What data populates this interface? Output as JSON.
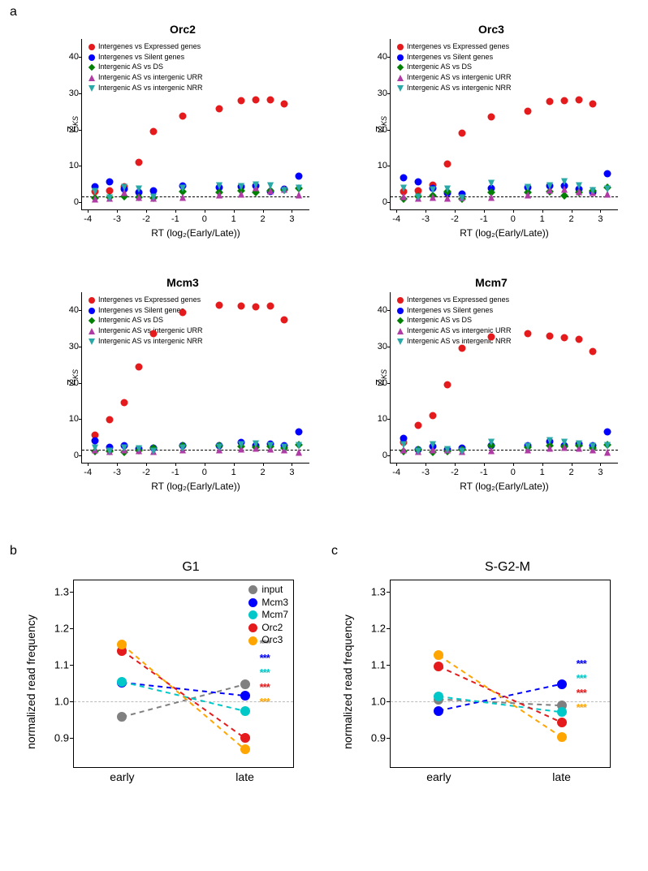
{
  "colors": {
    "red": "#e41a1c",
    "blue": "#0000ff",
    "green": "#008000",
    "magenta": "#b03ba5",
    "teal": "#2aa8a8",
    "grey": "#808080",
    "cyan": "#00c8c8",
    "gold": "#ffa500"
  },
  "panel_labels": {
    "a": "a",
    "b": "b",
    "c": "c"
  },
  "scatter": {
    "xlabel": "RT (log₂(Early/Late))",
    "ylabel": "Z",
    "ylabel_sub": "KS",
    "legend": [
      {
        "label": "Intergenes vs Expressed genes",
        "color": "red",
        "shape": "circle"
      },
      {
        "label": "Intergenes vs Silent genes",
        "color": "blue",
        "shape": "circle"
      },
      {
        "label": "Intergenic AS vs DS",
        "color": "green",
        "shape": "diamond"
      },
      {
        "label": "Intergenic AS vs intergenic URR",
        "color": "magenta",
        "shape": "tri-up"
      },
      {
        "label": "Intergenic AS vs intergenic NRR",
        "color": "teal",
        "shape": "tri-down"
      }
    ],
    "x_points": [
      -3.75,
      -3.25,
      -2.75,
      -2.25,
      -1.75,
      -0.75,
      0.5,
      1.25,
      1.75,
      2.25,
      2.75,
      3.25
    ],
    "xticks": [
      -4,
      -3,
      -2,
      -1,
      0,
      1,
      2,
      3
    ],
    "dashed_y": 1.5,
    "panels": [
      {
        "title": "Orc2",
        "ymax": 45,
        "yticks": [
          0,
          10,
          20,
          30,
          40
        ],
        "series": {
          "red": [
            3.0,
            3.2,
            4.2,
            11.0,
            19.5,
            23.8,
            25.7,
            28.0,
            28.3,
            28.3,
            27.0,
            null
          ],
          "blue": [
            4.2,
            5.6,
            3.5,
            2.7,
            3.2,
            4.4,
            4.0,
            4.2,
            4.5,
            3.0,
            3.6,
            7.1
          ],
          "green": [
            1.2,
            1.4,
            1.6,
            1.4,
            1.2,
            3.0,
            2.8,
            3.2,
            2.7,
            3.2,
            3.4,
            3.8
          ],
          "magenta": [
            1.0,
            1.2,
            2.6,
            1.4,
            1.2,
            1.4,
            2.0,
            2.3,
            4.0,
            3.1,
            3.6,
            2.0
          ],
          "teal": [
            3.0,
            1.2,
            4.0,
            3.5,
            1.4,
            3.8,
            4.5,
            4.2,
            4.8,
            4.5,
            3.2,
            3.8
          ]
        }
      },
      {
        "title": "Orc3",
        "ymax": 45,
        "yticks": [
          0,
          10,
          20,
          30,
          40
        ],
        "series": {
          "red": [
            3.0,
            3.2,
            4.8,
            10.6,
            19.0,
            23.6,
            25.0,
            27.8,
            28.0,
            28.2,
            27.2,
            null
          ],
          "blue": [
            6.7,
            5.6,
            3.8,
            2.4,
            2.2,
            3.8,
            4.0,
            4.5,
            4.6,
            3.5,
            2.8,
            7.8
          ],
          "green": [
            1.0,
            1.5,
            1.8,
            3.0,
            0.8,
            2.8,
            2.6,
            3.0,
            1.8,
            2.6,
            3.2,
            4.0
          ],
          "magenta": [
            1.5,
            1.2,
            1.4,
            1.2,
            1.4,
            1.3,
            2.0,
            3.4,
            3.7,
            3.0,
            2.7,
            2.2
          ],
          "teal": [
            3.8,
            1.4,
            3.3,
            3.5,
            1.2,
            5.2,
            4.0,
            4.4,
            5.5,
            4.6,
            3.2,
            3.6
          ]
        }
      },
      {
        "title": "Mcm3",
        "ymax": 45,
        "yticks": [
          0,
          10,
          20,
          30,
          40
        ],
        "series": {
          "red": [
            5.5,
            9.8,
            14.5,
            24.5,
            33.5,
            39.5,
            41.5,
            41.3,
            41.0,
            41.2,
            37.5,
            null
          ],
          "blue": [
            4.0,
            2.2,
            2.6,
            1.8,
            2.0,
            2.8,
            2.6,
            3.6,
            2.6,
            3.1,
            2.6,
            6.5
          ],
          "green": [
            1.2,
            1.2,
            0.8,
            1.4,
            2.0,
            2.6,
            2.8,
            2.4,
            2.2,
            2.4,
            2.0,
            3.0
          ],
          "magenta": [
            1.5,
            1.2,
            1.5,
            1.3,
            1.2,
            1.6,
            1.6,
            1.8,
            2.0,
            1.8,
            1.6,
            1.0
          ],
          "teal": [
            2.0,
            1.2,
            2.0,
            1.8,
            1.2,
            2.0,
            2.2,
            3.0,
            3.2,
            2.8,
            2.2,
            2.6
          ]
        }
      },
      {
        "title": "Mcm7",
        "ymax": 45,
        "yticks": [
          0,
          10,
          20,
          30,
          40
        ],
        "series": {
          "red": [
            3.6,
            8.2,
            11.0,
            19.5,
            29.5,
            32.6,
            33.5,
            33.0,
            32.5,
            32.0,
            28.7,
            null
          ],
          "blue": [
            4.7,
            1.6,
            2.4,
            1.6,
            2.0,
            2.6,
            2.6,
            3.8,
            2.7,
            3.2,
            2.6,
            6.4
          ],
          "green": [
            1.2,
            1.6,
            0.8,
            1.2,
            1.6,
            2.6,
            2.2,
            2.6,
            2.4,
            2.8,
            2.0,
            3.0
          ],
          "magenta": [
            1.5,
            1.2,
            1.5,
            1.5,
            1.2,
            1.4,
            1.6,
            2.0,
            2.2,
            2.0,
            1.6,
            1.0
          ],
          "teal": [
            3.0,
            1.2,
            3.0,
            1.6,
            1.2,
            3.6,
            2.4,
            4.0,
            3.6,
            3.2,
            2.4,
            2.8
          ]
        }
      }
    ]
  },
  "line": {
    "ylabel": "normalized read frequency",
    "yticks": [
      0.9,
      1.0,
      1.1,
      1.2,
      1.3
    ],
    "ymin": 0.82,
    "ymax": 1.33,
    "ref_y": 1.0,
    "x_labels": [
      "early",
      "late"
    ],
    "x_positions": [
      0.22,
      0.78
    ],
    "legend": [
      {
        "label": "input",
        "color": "grey"
      },
      {
        "label": "Mcm3",
        "color": "blue"
      },
      {
        "label": "Mcm7",
        "color": "cyan"
      },
      {
        "label": "Orc2",
        "color": "red"
      },
      {
        "label": "Orc3",
        "color": "gold"
      }
    ],
    "panels": {
      "b": {
        "title": "G1",
        "show_legend": true,
        "legend_pos": "right",
        "series": {
          "grey": {
            "early": 0.957,
            "late": 1.046,
            "stars": "***"
          },
          "blue": {
            "early": 1.051,
            "late": 1.015,
            "stars": "***"
          },
          "cyan": {
            "early": 1.053,
            "late": 0.973,
            "stars": "***"
          },
          "red": {
            "early": 1.138,
            "late": 0.899,
            "stars": "***"
          },
          "gold": {
            "early": 1.155,
            "late": 0.868,
            "stars": "***"
          }
        },
        "star_order": [
          "grey",
          "blue",
          "cyan",
          "red",
          "gold"
        ]
      },
      "c": {
        "title": "S-G2-M",
        "show_legend": false,
        "series": {
          "grey": {
            "early": 1.005,
            "late": 0.988,
            "stars": ""
          },
          "blue": {
            "early": 0.974,
            "late": 1.047,
            "stars": "***"
          },
          "cyan": {
            "early": 1.013,
            "late": 0.97,
            "stars": "***"
          },
          "red": {
            "early": 1.095,
            "late": 0.942,
            "stars": "***"
          },
          "gold": {
            "early": 1.125,
            "late": 0.902,
            "stars": "***"
          }
        },
        "star_order": [
          "blue",
          "cyan",
          "red",
          "gold"
        ]
      }
    }
  }
}
